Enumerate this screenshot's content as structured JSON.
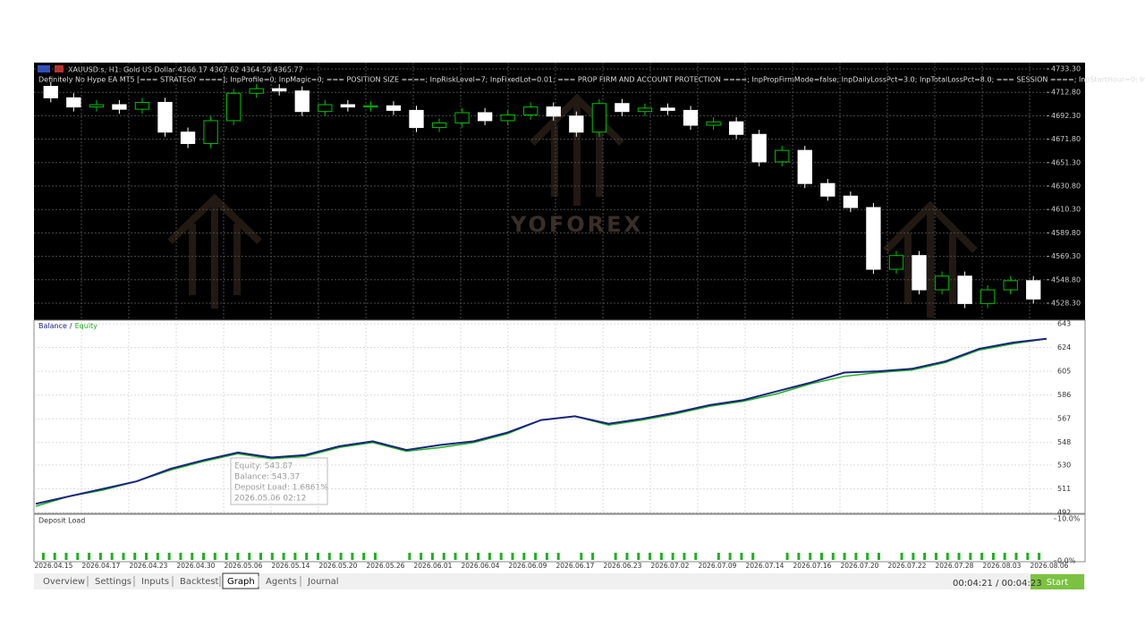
{
  "symbol_header": "XAUUSD.s, H1:  Gold US Dollar  4366.17 4367.62 4364.59 4365.77",
  "ea_header": "Definitely No Hype EA MT5 [=== STRATEGY ====]; InpProfile=0; InpMagic=0; === POSITION SIZE ====; InpRiskLevel=7; InpFixedLot=0.01; === PROP FIRM AND ACCOUNT PROTECTION ====; InpPropFirmMode=false; InpDailyLossPct=3.0; InpTotalLossPct=8.0; === SESSION ====; InpStartHour=0; InpEn",
  "watermark": "YOFOREX",
  "price_chart": {
    "type": "candlestick",
    "open": [
      4718,
      4708,
      4700,
      4702,
      4698,
      4704,
      4678,
      4668,
      4688,
      4712,
      4716,
      4714,
      4696,
      4702,
      4700,
      4701,
      4697,
      4682,
      4686,
      4695,
      4688,
      4693,
      4700,
      4692,
      4678,
      4703,
      4696,
      4699,
      4697,
      4684,
      4687,
      4676,
      4652,
      4662,
      4633,
      4622,
      4612,
      4558,
      4570,
      4540,
      4552,
      4528,
      4540,
      4548
    ],
    "high": [
      4722,
      4712,
      4706,
      4706,
      4708,
      4708,
      4682,
      4692,
      4716,
      4720,
      4720,
      4718,
      4706,
      4706,
      4705,
      4705,
      4701,
      4690,
      4699,
      4699,
      4697,
      4704,
      4704,
      4696,
      4707,
      4707,
      4703,
      4703,
      4701,
      4691,
      4691,
      4680,
      4666,
      4666,
      4637,
      4626,
      4616,
      4574,
      4574,
      4556,
      4556,
      4544,
      4552,
      4552
    ],
    "low": [
      4704,
      4696,
      4696,
      4694,
      4694,
      4674,
      4664,
      4664,
      4684,
      4708,
      4710,
      4692,
      4692,
      4696,
      4696,
      4693,
      4678,
      4678,
      4682,
      4684,
      4684,
      4689,
      4688,
      4674,
      4674,
      4692,
      4692,
      4693,
      4680,
      4680,
      4672,
      4648,
      4648,
      4629,
      4618,
      4608,
      4554,
      4554,
      4536,
      4536,
      4524,
      4524,
      4536,
      4528
    ],
    "close": [
      4708,
      4700,
      4702,
      4698,
      4704,
      4678,
      4668,
      4688,
      4712,
      4716,
      4714,
      4696,
      4702,
      4700,
      4701,
      4697,
      4682,
      4686,
      4695,
      4688,
      4693,
      4700,
      4692,
      4678,
      4703,
      4696,
      4699,
      4697,
      4684,
      4687,
      4676,
      4652,
      4662,
      4633,
      4622,
      4612,
      4558,
      4570,
      4540,
      4552,
      4528,
      4540,
      4548,
      4532
    ],
    "up_color": "#00c000",
    "down_color": "#ffffff",
    "ylim": [
      4514.2,
      4738.8
    ],
    "yticks": [
      {
        "value": 4733.3,
        "label": "4733.30"
      },
      {
        "value": 4712.8,
        "label": "4712.80"
      },
      {
        "value": 4692.3,
        "label": "4692.30"
      },
      {
        "value": 4671.8,
        "label": "4671.80"
      },
      {
        "value": 4651.3,
        "label": "4651.30"
      },
      {
        "value": 4630.8,
        "label": "4630.80"
      },
      {
        "value": 4610.3,
        "label": "4610.30"
      },
      {
        "value": 4589.8,
        "label": "4589.80"
      },
      {
        "value": 4569.3,
        "label": "4569.30"
      },
      {
        "value": 4548.8,
        "label": "4548.80"
      },
      {
        "value": 4528.3,
        "label": "4528.30"
      }
    ],
    "grid": true
  },
  "balance_chart": {
    "type": "line",
    "legend_separator": "/",
    "series": [
      {
        "name": "Equity",
        "color": "#20b020",
        "values": [
          497,
          505,
          510,
          517,
          526,
          533,
          539,
          535,
          537,
          544,
          548,
          541,
          544,
          548,
          555,
          566,
          569,
          562,
          566,
          571,
          577,
          581,
          587,
          595,
          601,
          604,
          606,
          612,
          622,
          627,
          631
        ]
      },
      {
        "name": "Balance",
        "color": "#1a237e",
        "values": [
          499,
          505,
          511,
          517,
          527,
          534,
          540,
          536,
          538,
          545,
          549,
          542,
          546,
          549,
          556,
          566,
          569,
          563,
          567,
          572,
          578,
          582,
          589,
          596,
          604,
          605,
          607,
          613,
          623,
          628,
          631
        ]
      }
    ],
    "ylim": [
      492,
      643
    ],
    "yticks": [
      492,
      511,
      530,
      548,
      567,
      586,
      605,
      624,
      643
    ],
    "grid": true
  },
  "tooltip": [
    "Equity: 543.87",
    "Balance: 543.37",
    "Deposit Load: 1.6861%",
    "2026.05.06 02:12"
  ],
  "deposit_load": {
    "type": "bar",
    "title": "Deposit Load",
    "color": "#20b020",
    "values": [
      1.7,
      1.7,
      1.7,
      1.7,
      1.7,
      1.7,
      1.7,
      1.7,
      1.7,
      1.7,
      1.7,
      1.7,
      1.7,
      1.7,
      1.7,
      1.7,
      1.7,
      1.7,
      1.7,
      1.7,
      1.7,
      1.7,
      1.7,
      1.7,
      1.7,
      1.7,
      1.7,
      1.7,
      1.7,
      1.7,
      null,
      null,
      1.7,
      1.7,
      1.7,
      1.7,
      1.7,
      1.7,
      1.7,
      1.7,
      1.7,
      1.7,
      1.7,
      1.7,
      1.7,
      1.7,
      null,
      1.7,
      1.7,
      null,
      1.7,
      1.7,
      1.7,
      1.7,
      1.7,
      1.7,
      1.7,
      1.7,
      null,
      1.7,
      1.7,
      1.7,
      1.7,
      null,
      null,
      1.7,
      1.7,
      1.7,
      1.7,
      1.7,
      1.7,
      1.7,
      1.7,
      1.7,
      null,
      1.7,
      1.7,
      1.7,
      1.7,
      1.7,
      1.7,
      1.7,
      1.7,
      1.7,
      1.7,
      1.7,
      1.7,
      1.7
    ],
    "ylim": [
      0,
      10
    ],
    "yticks": [
      {
        "value": 10,
        "label": "10.0%"
      },
      {
        "value": 0,
        "label": "0.0%"
      }
    ]
  },
  "dates": [
    "2026.04.15",
    "2026.04.17",
    "2026.04.23",
    "2026.04.30",
    "2026.05.06",
    "2026.05.14",
    "2026.05.20",
    "2026.05.26",
    "2026.06.01",
    "2026.06.04",
    "2026.06.09",
    "2026.06.17",
    "2026.06.23",
    "2026.07.02",
    "2026.07.09",
    "2026.07.14",
    "2026.07.16",
    "2026.07.20",
    "2026.07.22",
    "2026.07.28",
    "2026.08.03",
    "2026.08.06"
  ],
  "tabs": [
    "Overview",
    "Settings",
    "Inputs",
    "Backtest",
    "Graph",
    "Agents",
    "Journal"
  ],
  "active_tab": 4,
  "timer": "00:04:21 / 00:04:23",
  "start_button": "Start"
}
